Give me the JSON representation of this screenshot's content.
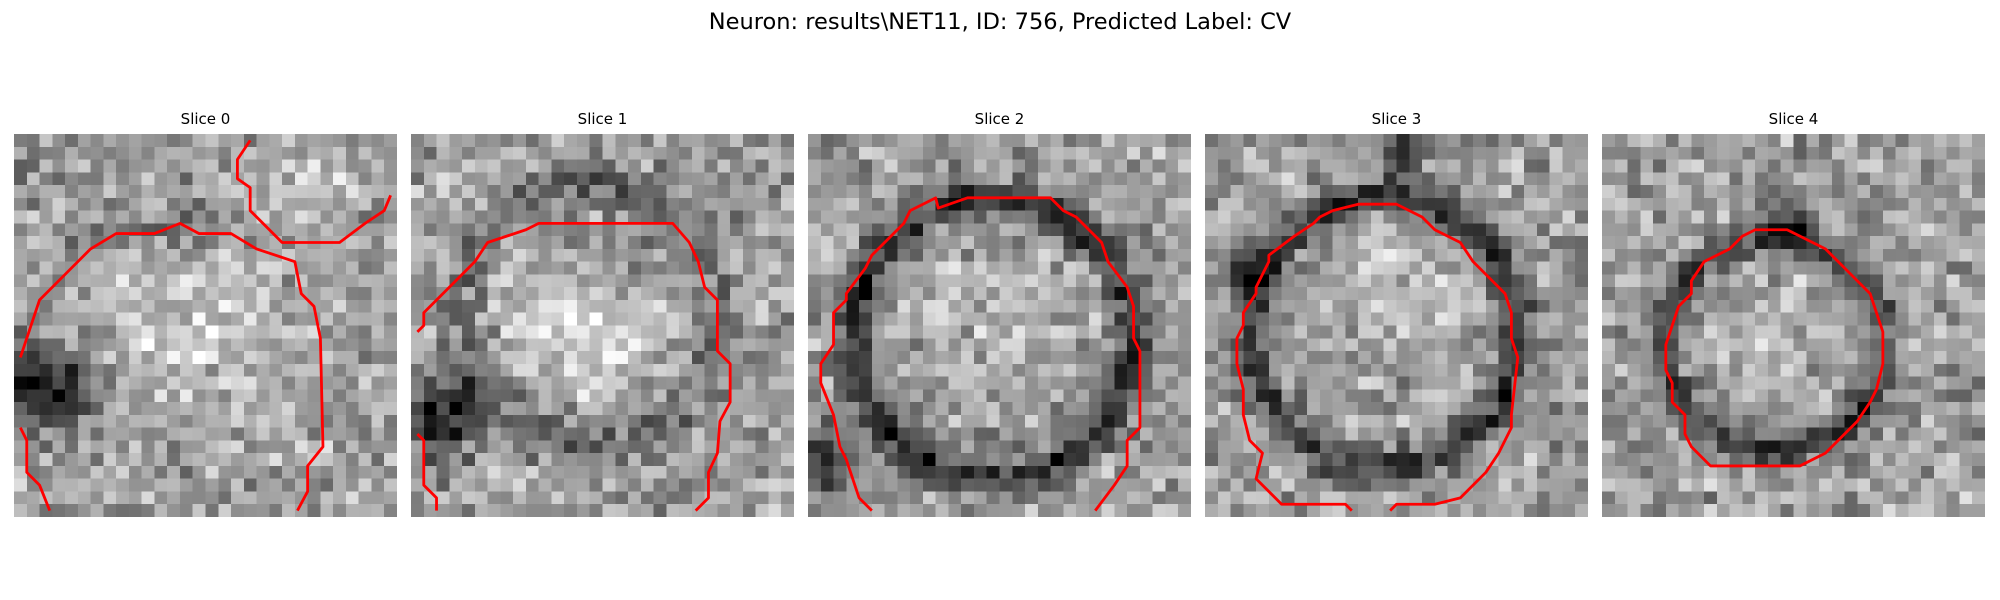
{
  "figure": {
    "title": "Neuron: results\\NET11, ID: 756, Predicted Label: CV"
  },
  "panels": [
    {
      "title": "Slice 0"
    },
    {
      "title": "Slice 1"
    },
    {
      "title": "Slice 2"
    },
    {
      "title": "Slice 3"
    },
    {
      "title": "Slice 4"
    }
  ],
  "colors": {
    "background": "#ffffff",
    "contour": "#ff0000",
    "colormap": "grayscale"
  }
}
